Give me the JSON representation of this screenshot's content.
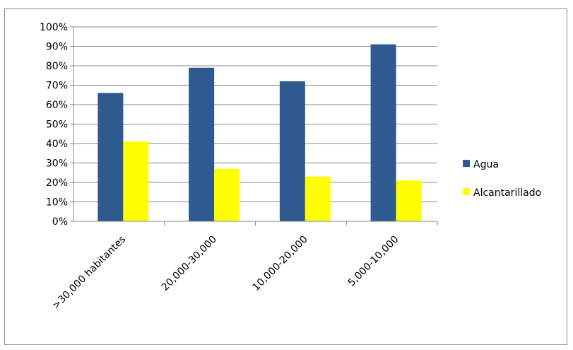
{
  "chart_data": {
    "type": "bar",
    "categories": [
      ">30,000 habitantes",
      "20,000-30,000",
      "10,000-20,000",
      "5,000-10,000"
    ],
    "series": [
      {
        "name": "Agua",
        "values": [
          66,
          79,
          72,
          91
        ],
        "color": "#2e5a8f"
      },
      {
        "name": "Alcantarillado",
        "values": [
          41,
          27,
          23,
          21
        ],
        "color": "#ffff00"
      }
    ],
    "ylim": [
      0,
      100
    ],
    "yticks": [
      "0%",
      "10%",
      "20%",
      "30%",
      "40%",
      "50%",
      "60%",
      "70%",
      "80%",
      "90%",
      "100%"
    ],
    "grid": true,
    "legend": "right"
  }
}
